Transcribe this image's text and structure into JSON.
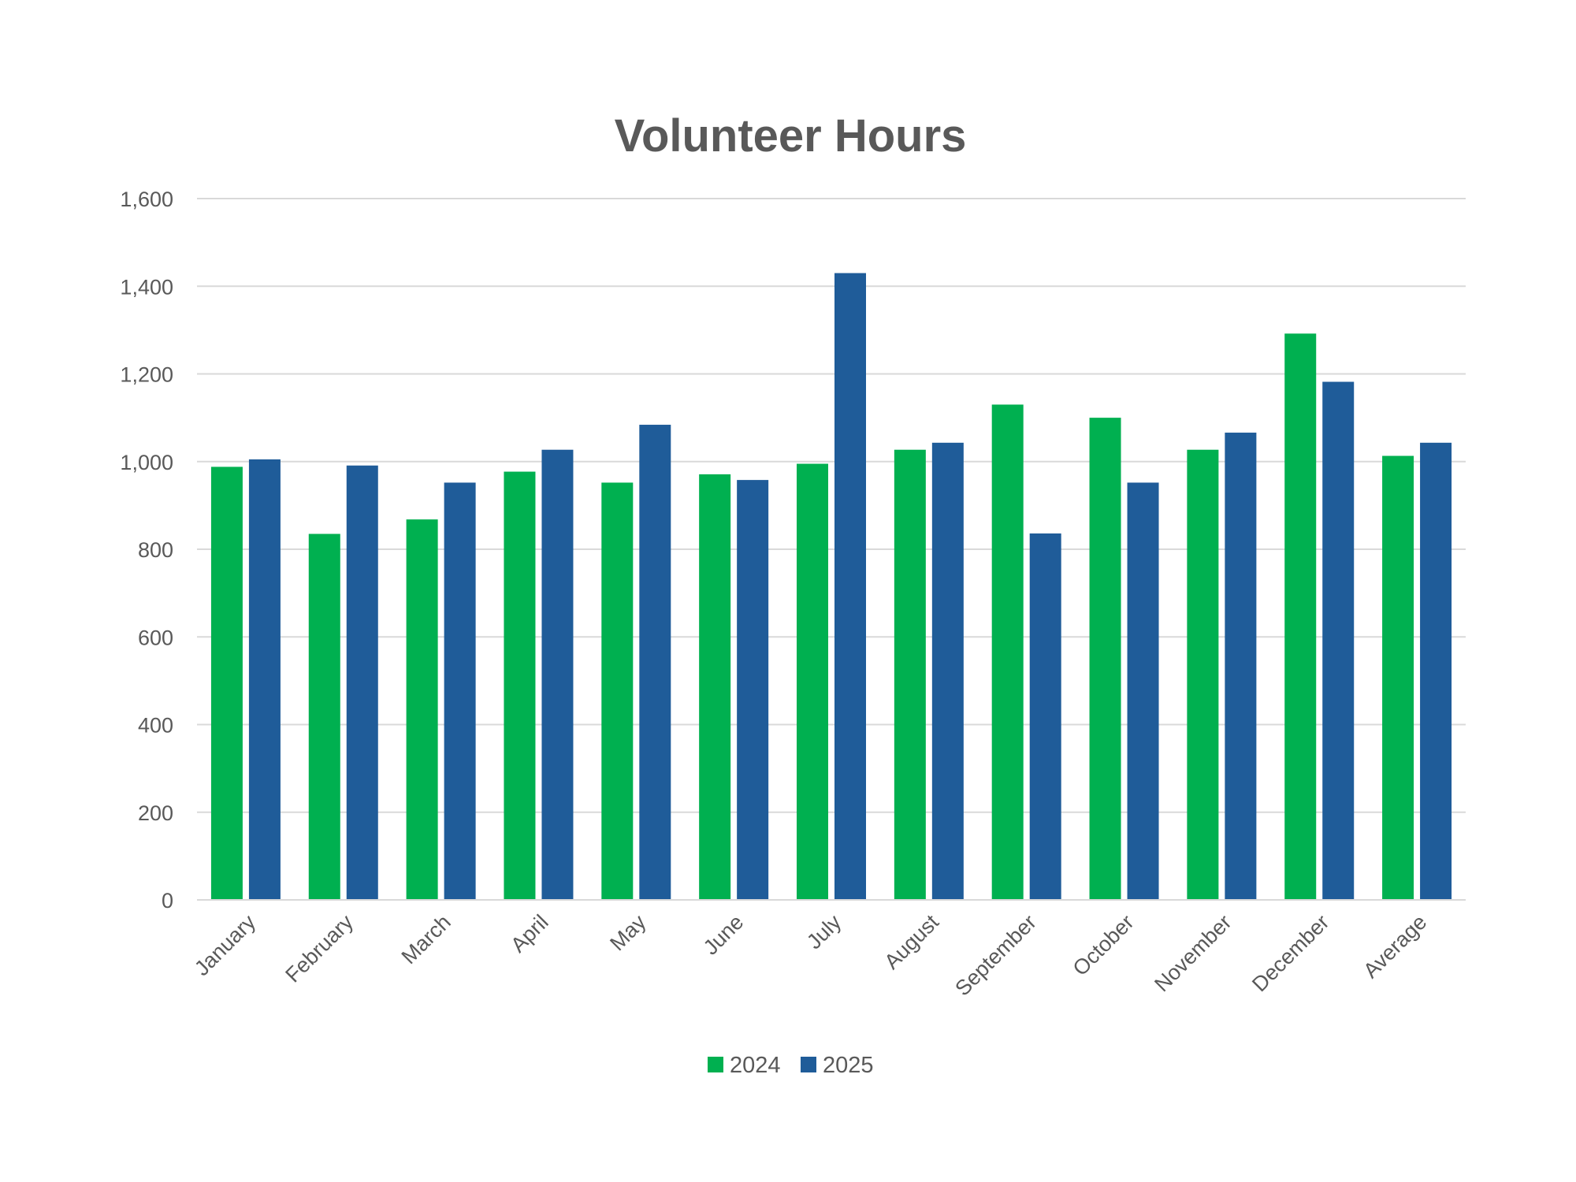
{
  "chart_data": {
    "type": "bar",
    "title": "Volunteer Hours",
    "xlabel": "",
    "ylabel": "",
    "ylim": [
      0,
      1600
    ],
    "yticks": [
      "0",
      "200",
      "400",
      "600",
      "800",
      "1,000",
      "1,200",
      "1,400",
      "1,600"
    ],
    "grid": true,
    "legend_position": "bottom",
    "categories": [
      "January",
      "February",
      "March",
      "April",
      "May",
      "June",
      "July",
      "August",
      "September",
      "October",
      "November",
      "December",
      "Average"
    ],
    "series": [
      {
        "name": "2024",
        "color": "#00b050",
        "values": [
          988,
          835,
          868,
          977,
          952,
          971,
          995,
          1027,
          1130,
          1100,
          1027,
          1292,
          1013
        ]
      },
      {
        "name": "2025",
        "color": "#1f5c99",
        "values": [
          1005,
          991,
          952,
          1027,
          1084,
          958,
          1430,
          1043,
          836,
          952,
          1066,
          1182,
          1043
        ]
      }
    ]
  }
}
